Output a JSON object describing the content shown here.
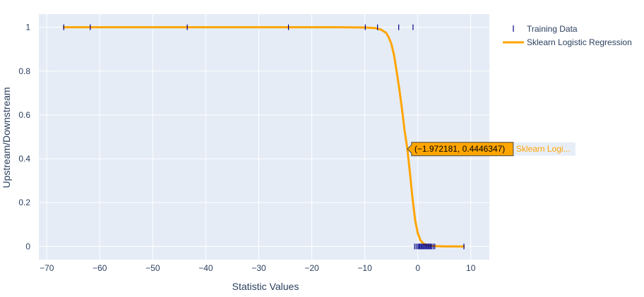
{
  "chart_data": {
    "type": "scatter",
    "xlabel": "Statistic Values",
    "ylabel": "Upstream/Downstream",
    "xlim": [
      -71.5,
      13.5
    ],
    "ylim": [
      -0.06,
      1.06
    ],
    "x_ticks": [
      -70,
      -60,
      -50,
      -40,
      -30,
      -20,
      -10,
      0,
      10
    ],
    "y_ticks": [
      0,
      0.2,
      0.4,
      0.6,
      0.8,
      1
    ],
    "x_tick_labels": [
      "−70",
      "−60",
      "−50",
      "−40",
      "−30",
      "−20",
      "−10",
      "0",
      "10"
    ],
    "y_tick_labels": [
      "0",
      "0.2",
      "0.4",
      "0.6",
      "0.8",
      "1"
    ],
    "grid": true,
    "legend_position": "top-right",
    "series": [
      {
        "name": "Training Data",
        "mode": "markers",
        "marker": "line-ns",
        "color": "#00008b",
        "points": [
          [
            -66.8,
            1
          ],
          [
            -61.8,
            1
          ],
          [
            -43.5,
            1
          ],
          [
            -24.4,
            1
          ],
          [
            -9.9,
            1
          ],
          [
            -7.6,
            1
          ],
          [
            -3.6,
            1
          ],
          [
            -0.9,
            1
          ],
          [
            -0.6,
            0
          ],
          [
            -0.3,
            0
          ],
          [
            0.0,
            0
          ],
          [
            0.2,
            0
          ],
          [
            0.4,
            0
          ],
          [
            0.6,
            0
          ],
          [
            0.8,
            0
          ],
          [
            1.0,
            0
          ],
          [
            1.2,
            0
          ],
          [
            1.4,
            0
          ],
          [
            1.6,
            0
          ],
          [
            1.8,
            0
          ],
          [
            2.0,
            0
          ],
          [
            2.2,
            0
          ],
          [
            2.4,
            0
          ],
          [
            2.6,
            0
          ],
          [
            2.9,
            0
          ],
          [
            3.2,
            0
          ],
          [
            8.7,
            0
          ]
        ]
      },
      {
        "name": "Sklearn Logistic Regression",
        "mode": "lines",
        "color": "#ffa500",
        "x": [
          -66.8,
          -60,
          -50,
          -40,
          -30,
          -20,
          -15,
          -10,
          -8,
          -7,
          -6,
          -5.5,
          -5,
          -4.5,
          -4,
          -3.5,
          -3,
          -2.5,
          -2,
          -1.972181,
          -1.5,
          -1,
          -0.5,
          0,
          0.5,
          1,
          1.5,
          2,
          3,
          5,
          8.7
        ],
        "y": [
          1,
          1,
          1,
          1,
          1,
          1,
          1,
          0.999,
          0.996,
          0.99,
          0.975,
          0.955,
          0.925,
          0.875,
          0.8,
          0.72,
          0.63,
          0.53,
          0.45,
          0.4446347,
          0.34,
          0.22,
          0.12,
          0.06,
          0.028,
          0.014,
          0.008,
          0.004,
          0.002,
          0.0005,
          0.0
        ]
      }
    ],
    "hover": {
      "x": -1.972181,
      "y": 0.4446347,
      "text": "(−1.972181, 0.4446347)",
      "series_label": "Sklearn Logi..."
    }
  },
  "colors": {
    "plot_bg": "#e5ecf6",
    "grid": "#ffffff",
    "training_marker": "#00008b",
    "regression_line": "#ffa500",
    "text": "#2a3f5f"
  }
}
